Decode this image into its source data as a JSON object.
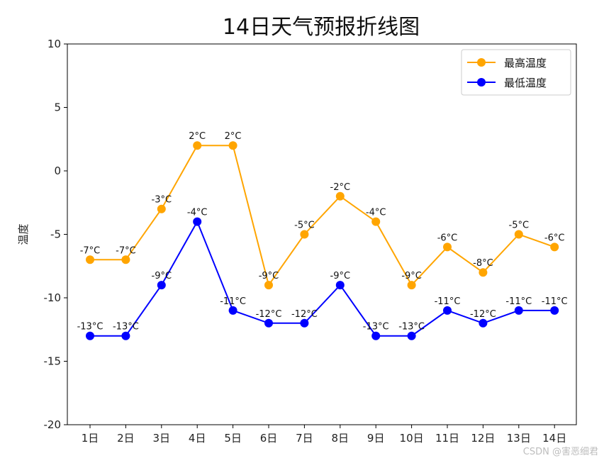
{
  "chart_data": {
    "type": "line",
    "title": "14日天气预报折线图",
    "xlabel": "",
    "ylabel": "温度",
    "categories": [
      "1日",
      "2日",
      "3日",
      "4日",
      "5日",
      "6日",
      "7日",
      "8日",
      "9日",
      "10日",
      "11日",
      "12日",
      "13日",
      "14日"
    ],
    "ylim": [
      -20,
      10
    ],
    "yticks": [
      10,
      5,
      0,
      -5,
      -10,
      -15,
      -20
    ],
    "grid": false,
    "legend_position": "top-right",
    "label_unit": "°C",
    "series": [
      {
        "name": "最高温度",
        "color": "#FFA500",
        "values": [
          -7,
          -7,
          -3,
          2,
          2,
          -9,
          -5,
          -2,
          -4,
          -9,
          -6,
          -8,
          -5,
          -6
        ]
      },
      {
        "name": "最低温度",
        "color": "#0000FF",
        "values": [
          -13,
          -13,
          -9,
          -4,
          -11,
          -12,
          -12,
          -9,
          -13,
          -13,
          -11,
          -12,
          -11,
          -11
        ]
      }
    ]
  },
  "watermark": "CSDN @害恶细君"
}
